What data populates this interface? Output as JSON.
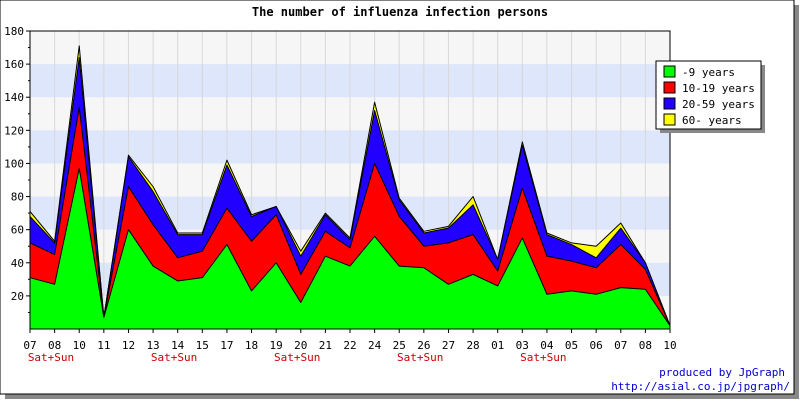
{
  "chart_data": {
    "type": "area",
    "stacked": true,
    "title": "The number of influenza infection persons",
    "xlabel": "",
    "ylabel": "",
    "ylim": [
      0,
      180
    ],
    "yticks": [
      20,
      40,
      60,
      80,
      100,
      120,
      140,
      160,
      180
    ],
    "categories": [
      "07",
      "08",
      "10",
      "11",
      "12",
      "13",
      "14",
      "15",
      "17",
      "18",
      "19",
      "20",
      "21",
      "22",
      "24",
      "25",
      "26",
      "27",
      "28",
      "01",
      "03",
      "04",
      "05",
      "06",
      "07",
      "08",
      "10"
    ],
    "weekend_label": "Sat+Sun",
    "weekend_indices": [
      0,
      5,
      10,
      15,
      20
    ],
    "grid": "horizontal",
    "legend_position": "right",
    "series": [
      {
        "name": "-9 years",
        "color": "#00ff00",
        "values": [
          31,
          27,
          97,
          7,
          60,
          38,
          29,
          31,
          51,
          23,
          40,
          16,
          44,
          38,
          56,
          38,
          37,
          27,
          33,
          26,
          55,
          21,
          23,
          21,
          25,
          24,
          2
        ]
      },
      {
        "name": "10-19 years",
        "color": "#ff0000",
        "values": [
          21,
          18,
          37,
          0,
          26,
          25,
          14,
          16,
          22,
          30,
          29,
          17,
          15,
          11,
          44,
          30,
          13,
          25,
          24,
          9,
          30,
          23,
          18,
          16,
          26,
          12,
          0
        ]
      },
      {
        "name": "20-59 years",
        "color": "#2200ff",
        "values": [
          16,
          7,
          30,
          0,
          18,
          20,
          14,
          10,
          26,
          15,
          5,
          11,
          10,
          5,
          32,
          10,
          8,
          9,
          18,
          7,
          26,
          13,
          10,
          6,
          10,
          4,
          0
        ]
      },
      {
        "name": "60- years",
        "color": "#ffff00",
        "values": [
          3,
          1,
          7,
          0,
          1,
          3,
          1,
          1,
          3,
          1,
          0,
          3,
          1,
          1,
          5,
          1,
          1,
          1,
          5,
          0,
          2,
          1,
          1,
          7,
          3,
          0,
          0
        ]
      }
    ]
  },
  "footer": {
    "line1": "produced by JpGraph",
    "line2": "http://asial.co.jp/jpgraph/"
  }
}
